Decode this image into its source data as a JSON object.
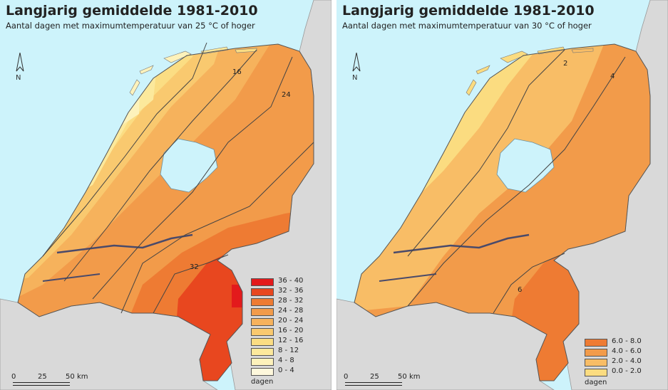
{
  "left_map": {
    "title": "Langjarig gemiddelde 1981-2010",
    "subtitle": "Aantal dagen met maximumtemperatuur van 25 °C of hoger",
    "north_label": "N",
    "contour_labels": [
      "16",
      "24",
      "32"
    ],
    "legend": {
      "classes": [
        {
          "label": "36 - 40",
          "color": "#e31a1c"
        },
        {
          "label": "32 - 36",
          "color": "#e8471f"
        },
        {
          "label": "28 - 32",
          "color": "#ee7b33"
        },
        {
          "label": "24 - 28",
          "color": "#f29b4a"
        },
        {
          "label": "20 - 24",
          "color": "#f6b25c"
        },
        {
          "label": "16 - 20",
          "color": "#f9c96f"
        },
        {
          "label": "12 - 16",
          "color": "#fbdd83"
        },
        {
          "label": "8 - 12",
          "color": "#fce99c"
        },
        {
          "label": "4 - 8",
          "color": "#fdf2bb"
        },
        {
          "label": "0 - 4",
          "color": "#fef8dc"
        }
      ],
      "unit": "dagen"
    },
    "scale": {
      "ticks": [
        "0",
        "25",
        "50"
      ],
      "unit": "km"
    }
  },
  "right_map": {
    "title": "Langjarig gemiddelde 1981-2010",
    "subtitle": "Aantal dagen met maximumtemperatuur van 30 °C of hoger",
    "north_label": "N",
    "contour_labels": [
      "2",
      "4",
      "6"
    ],
    "legend": {
      "classes": [
        {
          "label": "6.0 - 8.0",
          "color": "#ee7b33"
        },
        {
          "label": "4.0 - 6.0",
          "color": "#f29b4a"
        },
        {
          "label": "2.0 - 4.0",
          "color": "#f8bd66"
        },
        {
          "label": "0.0 - 2.0",
          "color": "#fbdc80"
        }
      ],
      "unit": "dagen"
    },
    "scale": {
      "ticks": [
        "0",
        "25",
        "50"
      ],
      "unit": "km"
    }
  }
}
